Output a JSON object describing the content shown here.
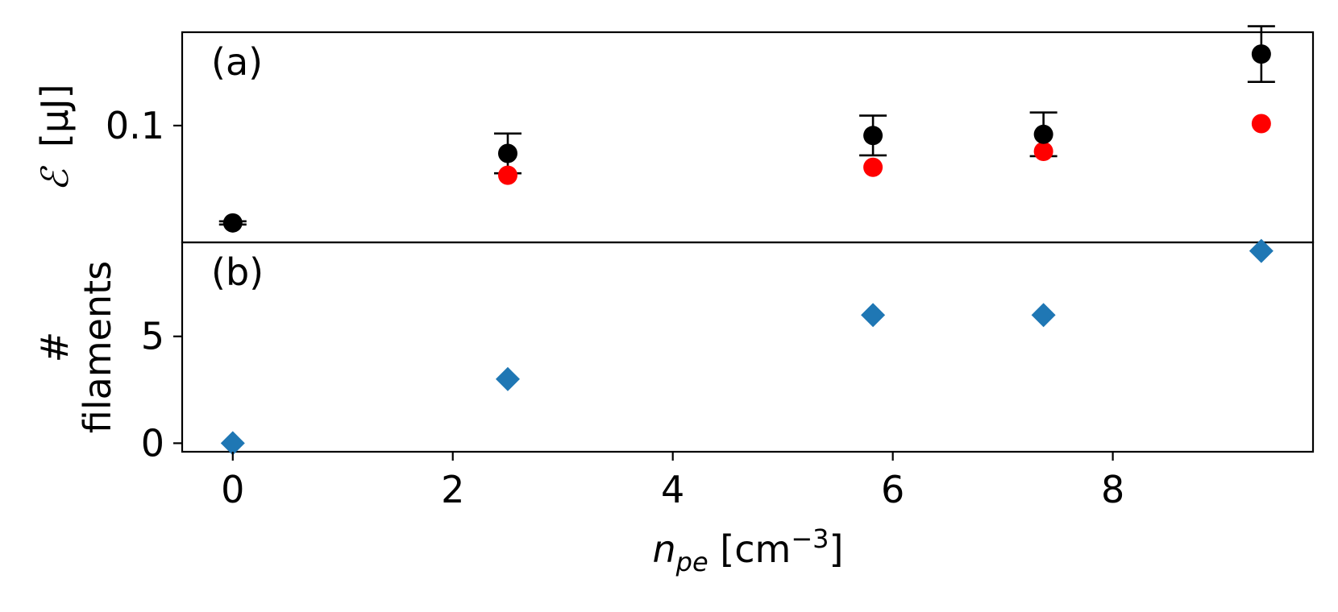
{
  "chart_data": [
    {
      "panel": "a",
      "panel_label": "(a)",
      "type": "scatter",
      "ylabel_symbol": "ℰ",
      "ylabel_unit": "[μJ]",
      "ylim": [
        0.0706,
        0.1235
      ],
      "yticks": [
        0.1
      ],
      "ytick_labels": [
        "0.1"
      ],
      "grid": false,
      "series": [
        {
          "marker": "circle",
          "color": "#000000",
          "errorbars": true,
          "points": [
            {
              "x": 0.0,
              "y": 0.0755,
              "yerr": 0.0004
            },
            {
              "x": 2.5,
              "y": 0.093,
              "yerr": 0.005
            },
            {
              "x": 5.82,
              "y": 0.0975,
              "yerr": 0.005
            },
            {
              "x": 7.37,
              "y": 0.0978,
              "yerr": 0.0055
            },
            {
              "x": 9.35,
              "y": 0.118,
              "yerr": 0.007
            }
          ]
        },
        {
          "marker": "circle",
          "color": "#ff0000",
          "errorbars": false,
          "points": [
            {
              "x": 2.5,
              "y": 0.0875
            },
            {
              "x": 5.82,
              "y": 0.0895
            },
            {
              "x": 7.37,
              "y": 0.0935
            },
            {
              "x": 9.35,
              "y": 0.1005
            }
          ]
        }
      ]
    },
    {
      "panel": "b",
      "panel_label": "(b)",
      "type": "scatter",
      "ylabel_line1": "#",
      "ylabel_line2": "filaments",
      "ylim": [
        -0.4,
        9.4
      ],
      "yticks": [
        0,
        5
      ],
      "ytick_labels": [
        "0",
        "5"
      ],
      "grid": false,
      "series": [
        {
          "marker": "diamond",
          "color": "#1f77b4",
          "points": [
            {
              "x": 0.0,
              "y": 0
            },
            {
              "x": 2.5,
              "y": 3
            },
            {
              "x": 5.82,
              "y": 6
            },
            {
              "x": 7.37,
              "y": 6
            },
            {
              "x": 9.35,
              "y": 9
            }
          ]
        }
      ]
    }
  ],
  "x_axis": {
    "xlim": [
      -0.46,
      9.82
    ],
    "xticks": [
      0,
      2,
      4,
      6,
      8
    ],
    "xtick_labels": [
      "0",
      "2",
      "4",
      "6",
      "8"
    ],
    "xlabel_var": "n",
    "xlabel_sub": "pe",
    "xlabel_unit_pre": " [cm",
    "xlabel_unit_sup": "−3",
    "xlabel_unit_post": "]"
  }
}
